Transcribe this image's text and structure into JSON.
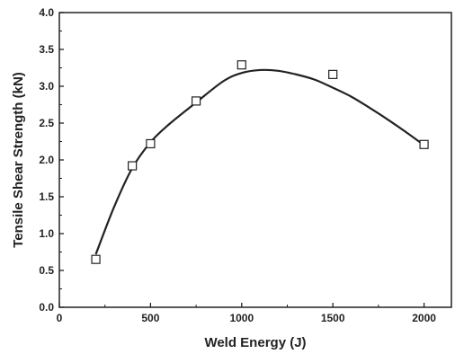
{
  "chart_data": {
    "type": "scatter",
    "title": "",
    "xlabel": "Weld Energy (J)",
    "ylabel": "Tensile Shear Strength (kN)",
    "xlim": [
      0,
      2150
    ],
    "ylim": [
      0.0,
      4.0
    ],
    "x_ticks": [
      "0",
      "500",
      "1000",
      "1500",
      "2000"
    ],
    "y_ticks": [
      "0.0",
      "0.5",
      "1.0",
      "1.5",
      "2.0",
      "2.5",
      "3.0",
      "3.5",
      "4.0"
    ],
    "grid": false,
    "legend": "none",
    "series": [
      {
        "marker": "open-square",
        "x": [
          200,
          400,
          500,
          750,
          1000,
          1500,
          2000
        ],
        "y": [
          0.65,
          1.92,
          2.22,
          2.8,
          3.29,
          3.16,
          2.21
        ]
      }
    ],
    "fit_curve": {
      "style": "smooth-line",
      "x": [
        200,
        300,
        400,
        500,
        600,
        750,
        900,
        1000,
        1100,
        1200,
        1300,
        1400,
        1500,
        1600,
        1700,
        1800,
        1900,
        2000
      ],
      "y": [
        0.72,
        1.36,
        1.89,
        2.24,
        2.48,
        2.78,
        3.07,
        3.18,
        3.22,
        3.21,
        3.16,
        3.09,
        2.98,
        2.86,
        2.71,
        2.55,
        2.38,
        2.2
      ]
    }
  }
}
